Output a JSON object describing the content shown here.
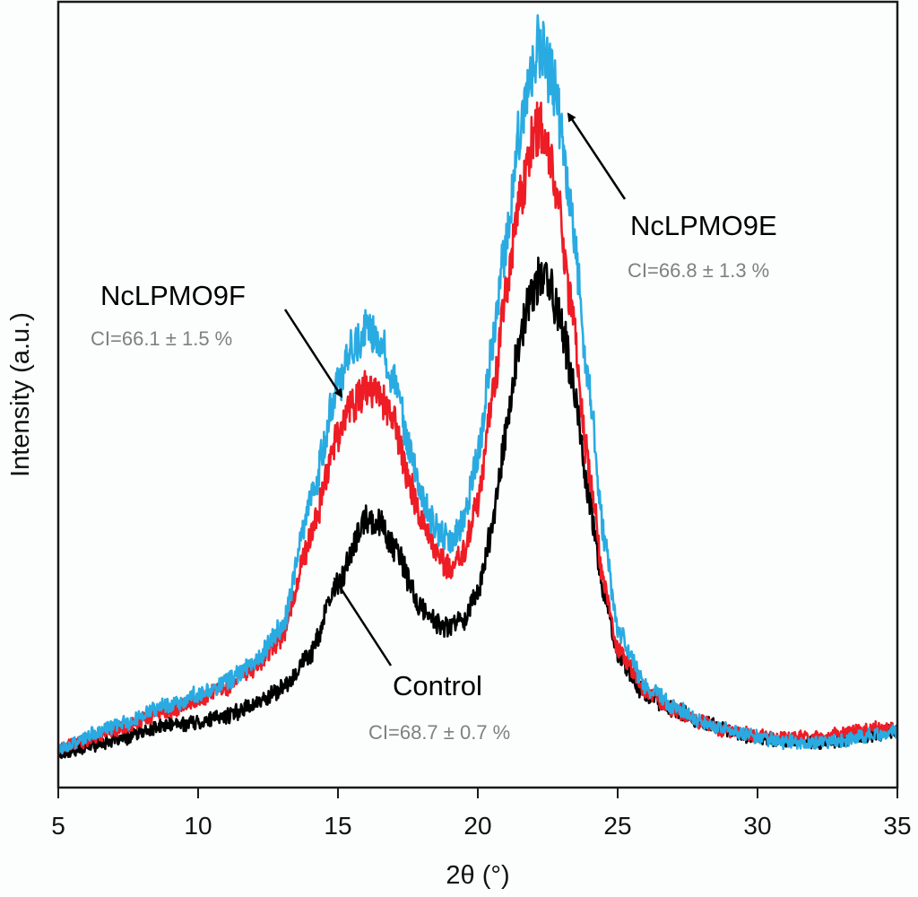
{
  "chart_data": {
    "type": "line",
    "title": "",
    "xlabel": "2θ (°)",
    "ylabel": "Intensity (a.u.)",
    "xlim": [
      5,
      35
    ],
    "ylim": [
      0,
      100
    ],
    "y_units_note": "arbitrary units (normalized 0-100)",
    "x_ticks": [
      5,
      10,
      15,
      20,
      25,
      30,
      35
    ],
    "y_ticks_shown": false,
    "grid": false,
    "legend": "none (inline annotations)",
    "series": [
      {
        "name": "Control",
        "color": "#000000",
        "ci": "CI=68.7 ± 0.7 %",
        "x": [
          5,
          7,
          9,
          10,
          11,
          12,
          13,
          14,
          15,
          16,
          16.5,
          17,
          18,
          18.8,
          19.5,
          20,
          20.5,
          21,
          21.5,
          22,
          22.4,
          23,
          23.5,
          24,
          24.5,
          25,
          26,
          27,
          28,
          29,
          30,
          31,
          32,
          33,
          34,
          35
        ],
        "y": [
          4.3,
          6.0,
          8.0,
          8.3,
          9.1,
          10.6,
          12.6,
          16.9,
          26.0,
          34.0,
          33.8,
          30.6,
          22.6,
          20.3,
          21.5,
          24.9,
          32.9,
          45.4,
          56.8,
          63.7,
          65.4,
          59.1,
          48.9,
          36.3,
          24.9,
          16.9,
          11.8,
          10.0,
          8.3,
          7.2,
          6.4,
          5.9,
          5.7,
          6.0,
          6.6,
          7.2
        ]
      },
      {
        "name": "NcLPMO9F",
        "color": "#ee1c25",
        "ci": "CI=66.1 ± 1.5 %",
        "x": [
          5,
          7,
          9,
          10,
          11,
          12,
          13,
          14,
          15,
          15.5,
          16,
          16.5,
          17,
          17.5,
          18,
          18.5,
          19,
          19.5,
          20,
          20.5,
          21,
          21.5,
          22,
          22.3,
          22.8,
          23.3,
          24,
          24.5,
          25,
          26,
          27,
          28,
          29,
          30,
          31,
          32,
          33,
          34,
          35
        ],
        "y": [
          4.9,
          7.2,
          10.0,
          11.2,
          12.9,
          15.2,
          19.2,
          31.7,
          45.4,
          48.9,
          50.6,
          50.0,
          46.6,
          39.7,
          34.0,
          30.0,
          27.7,
          30.0,
          36.3,
          48.9,
          62.6,
          75.1,
          83.1,
          84.2,
          76.3,
          62.6,
          39.7,
          26.0,
          17.5,
          12.1,
          10.0,
          8.3,
          7.2,
          6.6,
          6.4,
          6.3,
          6.8,
          7.5,
          7.5
        ]
      },
      {
        "name": "NcLPMO9E",
        "color": "#29abe2",
        "ci": "CI=66.8 ± 1.3 %",
        "x": [
          5,
          7,
          9,
          10,
          11,
          12,
          13,
          14,
          15,
          15.5,
          16,
          16.5,
          17,
          17.5,
          18,
          18.5,
          19,
          19.5,
          20,
          20.5,
          21,
          21.5,
          22,
          22.2,
          22.7,
          23.2,
          24,
          24.5,
          25,
          26,
          27,
          28,
          29,
          30,
          31,
          32,
          33,
          34,
          35
        ],
        "y": [
          4.9,
          7.8,
          10.6,
          11.8,
          13.5,
          15.8,
          20.3,
          36.3,
          51.1,
          56.3,
          58.0,
          57.4,
          52.3,
          44.3,
          37.4,
          32.9,
          31.2,
          34.0,
          42.0,
          55.7,
          69.4,
          83.1,
          92.2,
          95.1,
          90.0,
          77.4,
          51.1,
          31.7,
          20.3,
          12.9,
          10.3,
          8.3,
          7.2,
          6.4,
          5.8,
          5.7,
          6.0,
          6.6,
          7.2
        ]
      }
    ],
    "annotations": [
      {
        "label": "NcLPMO9E",
        "ci_text": "CI=66.8 ± 1.3 %",
        "points_to_x": 22.8
      },
      {
        "label": "NcLPMO9F",
        "ci_text": "CI=66.1 ± 1.5 %",
        "points_to_x": 15.2
      },
      {
        "label": "Control",
        "ci_text": "CI=68.7 ± 0.7 %",
        "points_to_x": 14.7
      }
    ]
  }
}
